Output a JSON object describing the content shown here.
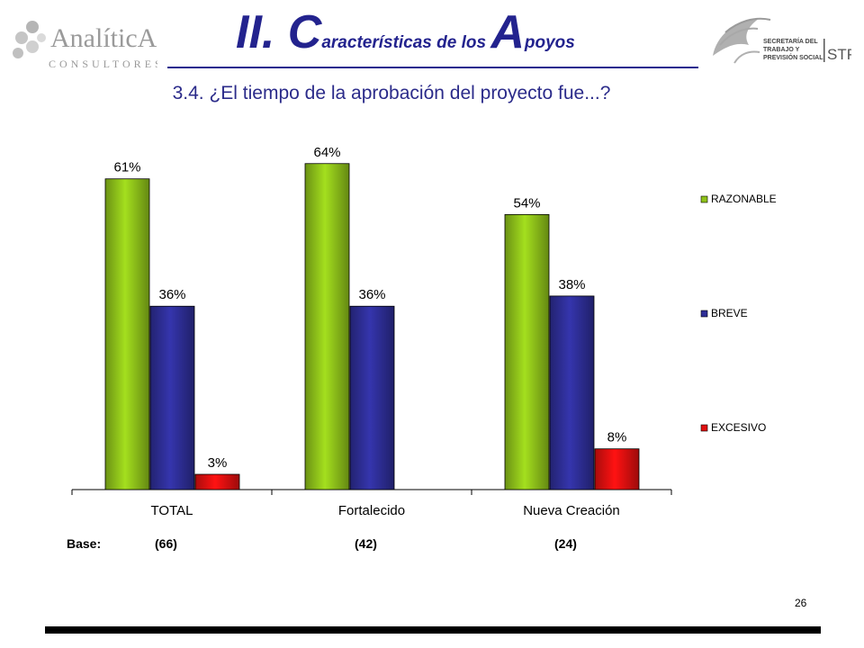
{
  "header": {
    "title_parts": [
      {
        "text": "II. C",
        "size": "big"
      },
      {
        "text": "aracterísticas de los ",
        "size": "small"
      },
      {
        "text": "A",
        "size": "big"
      },
      {
        "text": "poyos",
        "size": "small"
      }
    ],
    "subtitle": "3.4. ¿El tiempo de la aprobación del proyecto fue...?",
    "logo_left": {
      "name": "AnalíticA",
      "tagline": "CONSULTORES"
    },
    "logo_right": {
      "lines": [
        "SECRETARÍA DEL",
        "TRABAJO Y",
        "PREVISIÓN SOCIAL"
      ],
      "mark": "STPS"
    }
  },
  "chart_data": {
    "type": "bar",
    "categories": [
      "TOTAL",
      "Fortalecido",
      "Nueva Creación"
    ],
    "series": [
      {
        "name": "RAZONABLE",
        "values": [
          61,
          64,
          54
        ],
        "color": "#8fc21a"
      },
      {
        "name": "BREVE",
        "values": [
          36,
          36,
          38
        ],
        "color": "#2e2e96"
      },
      {
        "name": "EXCESIVO",
        "values": [
          3,
          0,
          8
        ],
        "color": "#e01010"
      }
    ],
    "data_labels": [
      [
        "61%",
        "64%",
        "54%"
      ],
      [
        "36%",
        "36%",
        "38%"
      ],
      [
        "3%",
        null,
        "8%"
      ]
    ],
    "unit": "%",
    "legend_position": "right",
    "grid": false
  },
  "base": {
    "label": "Base:",
    "values": [
      "(66)",
      "(42)",
      "(24)"
    ]
  },
  "footer": {
    "page_number": "26"
  }
}
